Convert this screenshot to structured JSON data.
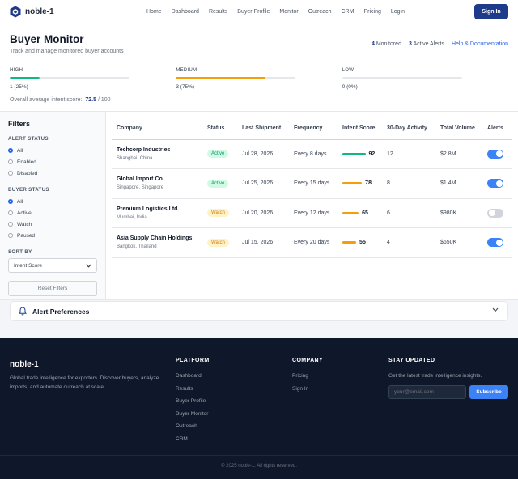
{
  "nav": {
    "brand": "noble-1",
    "links": [
      "Home",
      "Dashboard",
      "Results",
      "Buyer Profile",
      "Monitor",
      "Outreach",
      "CRM",
      "Pricing",
      "Login"
    ],
    "sign_in": "Sign In"
  },
  "header": {
    "title": "Buyer Monitor",
    "subtitle": "Track and manage monitored buyer accounts",
    "monitored_count": "4",
    "monitored_label": "Monitored",
    "alerts_count": "3",
    "alerts_label": "Active Alerts",
    "help_link": "Help & Documentation"
  },
  "intent": {
    "bands": [
      {
        "label": "HIGH",
        "count": "1 (25%)",
        "fraction": 0.25,
        "color": "#10b981"
      },
      {
        "label": "MEDIUM",
        "count": "3 (75%)",
        "fraction": 0.75,
        "color": "#f59e0b"
      },
      {
        "label": "LOW",
        "count": "0 (0%)",
        "fraction": 0,
        "color": "#9ca3af"
      }
    ],
    "avg_label": "Overall average intent score:",
    "avg_value": "72.5",
    "avg_max": "/ 100"
  },
  "filters": {
    "title": "Filters",
    "alert_status_label": "ALERT STATUS",
    "alert_status_options": [
      "All",
      "Enabled",
      "Disabled"
    ],
    "alert_status_selected": "All",
    "buyer_status_label": "BUYER STATUS",
    "buyer_status_options": [
      "All",
      "Active",
      "Watch",
      "Paused"
    ],
    "buyer_status_selected": "All",
    "sort_by_label": "SORT BY",
    "sort_by_value": "Intent Score",
    "reset_label": "Reset Filters"
  },
  "table": {
    "headers": [
      "Company",
      "Status",
      "Last Shipment",
      "Frequency",
      "Intent Score",
      "30-Day Activity",
      "Total Volume",
      "Alerts"
    ],
    "rows": [
      {
        "company": "Techcorp Industries",
        "location": "Shanghai, China",
        "status": "Active",
        "last_shipment": "Jul 28, 2026",
        "frequency": "Every 8 days",
        "score": "92",
        "score_color": "#10b981",
        "activity": "12",
        "volume": "$2.8M",
        "alerts_on": true
      },
      {
        "company": "Global Import Co.",
        "location": "Singapore, Singapore",
        "status": "Active",
        "last_shipment": "Jul 25, 2026",
        "frequency": "Every 15 days",
        "score": "78",
        "score_color": "#f59e0b",
        "activity": "8",
        "volume": "$1.4M",
        "alerts_on": true
      },
      {
        "company": "Premium Logistics Ltd.",
        "location": "Mumbai, India",
        "status": "Watch",
        "last_shipment": "Jul 20, 2026",
        "frequency": "Every 12 days",
        "score": "65",
        "score_color": "#f59e0b",
        "activity": "6",
        "volume": "$980K",
        "alerts_on": false
      },
      {
        "company": "Asia Supply Chain Holdings",
        "location": "Bangkok, Thailand",
        "status": "Watch",
        "last_shipment": "Jul 15, 2026",
        "frequency": "Every 20 days",
        "score": "55",
        "score_color": "#f59e0b",
        "activity": "4",
        "volume": "$650K",
        "alerts_on": true
      }
    ]
  },
  "prefs": {
    "title": "Alert Preferences"
  },
  "footer": {
    "brand": "noble-1",
    "description": "Global trade intelligence for exporters. Discover buyers, analyze imports, and automate outreach at scale.",
    "platform_title": "PLATFORM",
    "platform_links": [
      "Dashboard",
      "Results",
      "Buyer Profile",
      "Buyer Monitor",
      "Outreach",
      "CRM"
    ],
    "company_title": "COMPANY",
    "company_links": [
      "Pricing",
      "Sign In"
    ],
    "stay_title": "STAY UPDATED",
    "stay_desc": "Get the latest trade intelligence insights.",
    "email_placeholder": "your@email.com",
    "subscribe": "Subscribe",
    "copyright": "© 2025 noble-1. All rights reserved."
  }
}
